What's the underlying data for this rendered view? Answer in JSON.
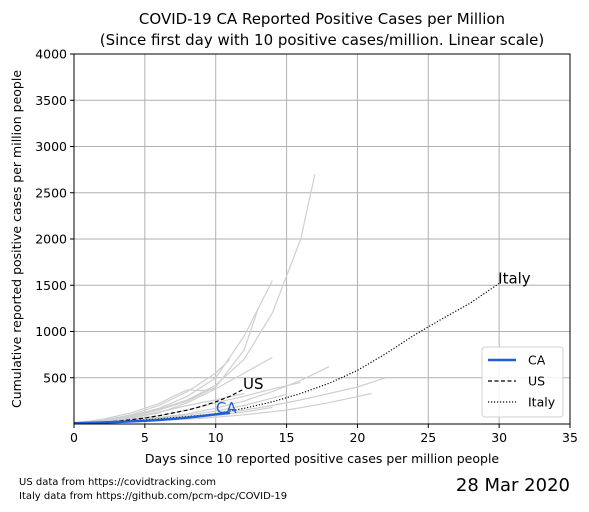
{
  "chart_data": {
    "type": "line",
    "title": "COVID-19 CA Reported Positive Cases per Million",
    "subtitle": "(Since first day with 10 positive cases/million. Linear scale)",
    "xlabel": "Days since 10 reported positive cases per million people",
    "ylabel": "Cumulative reported positive cases per million people",
    "xlim": [
      0,
      35
    ],
    "ylim": [
      0,
      4000
    ],
    "xticks": [
      0,
      5,
      10,
      15,
      20,
      25,
      30,
      35
    ],
    "yticks": [
      500,
      1000,
      1500,
      2000,
      2500,
      3000,
      3500,
      4000
    ],
    "grid": true,
    "legend_position": "lower-right",
    "series": [
      {
        "name": "CA",
        "color": "#1f5fd6",
        "style": "solid",
        "x": [
          0,
          1,
          2,
          3,
          4,
          5,
          6,
          7,
          8,
          9,
          10,
          11
        ],
        "y": [
          10,
          13,
          17,
          22,
          28,
          35,
          43,
          55,
          68,
          85,
          105,
          120
        ],
        "end_label": "CA"
      },
      {
        "name": "US",
        "color": "#000000",
        "style": "dashed",
        "x": [
          0,
          1,
          2,
          3,
          4,
          5,
          6,
          7,
          8,
          9,
          10,
          11,
          12
        ],
        "y": [
          10,
          14,
          20,
          30,
          45,
          65,
          90,
          120,
          150,
          190,
          240,
          300,
          380
        ],
        "end_label": "US"
      },
      {
        "name": "Italy",
        "color": "#000000",
        "style": "dotted",
        "x": [
          0,
          2,
          4,
          6,
          8,
          10,
          12,
          14,
          16,
          18,
          20,
          22,
          24,
          26,
          28,
          30
        ],
        "y": [
          10,
          20,
          35,
          55,
          80,
          110,
          170,
          240,
          330,
          440,
          580,
          760,
          960,
          1140,
          1310,
          1520
        ],
        "end_label": "Italy"
      }
    ],
    "background_series": [
      {
        "x": [
          0,
          2,
          4,
          6,
          8,
          10,
          12,
          14,
          16,
          17
        ],
        "y": [
          10,
          40,
          90,
          160,
          260,
          420,
          700,
          1200,
          2000,
          2700
        ]
      },
      {
        "x": [
          0,
          2,
          4,
          6,
          8,
          10,
          12,
          13
        ],
        "y": [
          10,
          30,
          80,
          150,
          250,
          400,
          800,
          1250
        ]
      },
      {
        "x": [
          0,
          2,
          4,
          6,
          8,
          10,
          12,
          14
        ],
        "y": [
          10,
          35,
          90,
          170,
          300,
          500,
          950,
          1550
        ]
      },
      {
        "x": [
          0,
          2,
          4,
          6,
          8,
          10,
          11
        ],
        "y": [
          10,
          40,
          100,
          200,
          350,
          550,
          700
        ]
      },
      {
        "x": [
          0,
          2,
          4,
          6,
          8,
          10,
          12,
          14
        ],
        "y": [
          10,
          25,
          60,
          120,
          230,
          380,
          550,
          720
        ]
      },
      {
        "x": [
          0,
          2,
          4,
          6,
          7,
          8,
          9,
          10
        ],
        "y": [
          10,
          50,
          120,
          220,
          300,
          370,
          360,
          380
        ]
      },
      {
        "x": [
          0,
          2,
          4,
          6,
          8,
          10,
          12,
          14,
          16,
          18
        ],
        "y": [
          10,
          20,
          40,
          70,
          110,
          170,
          250,
          350,
          470,
          620
        ]
      },
      {
        "x": [
          0,
          2,
          4,
          6,
          8,
          10,
          12,
          14,
          16,
          18,
          20,
          22
        ],
        "y": [
          10,
          15,
          30,
          50,
          80,
          110,
          150,
          200,
          260,
          330,
          400,
          500
        ]
      },
      {
        "x": [
          0,
          3,
          6,
          9,
          12,
          15,
          18,
          21
        ],
        "y": [
          10,
          20,
          40,
          60,
          100,
          150,
          230,
          330
        ]
      },
      {
        "x": [
          0,
          2,
          4,
          6,
          8,
          10,
          12,
          14,
          16
        ],
        "y": [
          10,
          25,
          50,
          90,
          150,
          230,
          300,
          380,
          450
        ]
      },
      {
        "x": [
          0,
          2,
          4,
          6,
          8,
          10,
          12
        ],
        "y": [
          10,
          30,
          70,
          130,
          200,
          260,
          330
        ]
      },
      {
        "x": [
          0,
          2,
          4,
          6,
          8,
          10,
          12,
          14
        ],
        "y": [
          10,
          15,
          25,
          40,
          60,
          90,
          130,
          180
        ]
      },
      {
        "x": [
          0,
          2,
          4,
          6,
          8,
          10
        ],
        "y": [
          10,
          20,
          40,
          70,
          110,
          170
        ]
      },
      {
        "x": [
          0,
          2,
          4,
          6,
          8,
          10,
          12,
          14,
          15
        ],
        "y": [
          10,
          18,
          35,
          60,
          95,
          140,
          200,
          280,
          320
        ]
      }
    ]
  },
  "footer": {
    "source_us": "US data from https://covidtracking.com",
    "source_italy": "Italy data from https://github.com/pcm-dpc/COVID-19",
    "date": "28 Mar 2020"
  }
}
